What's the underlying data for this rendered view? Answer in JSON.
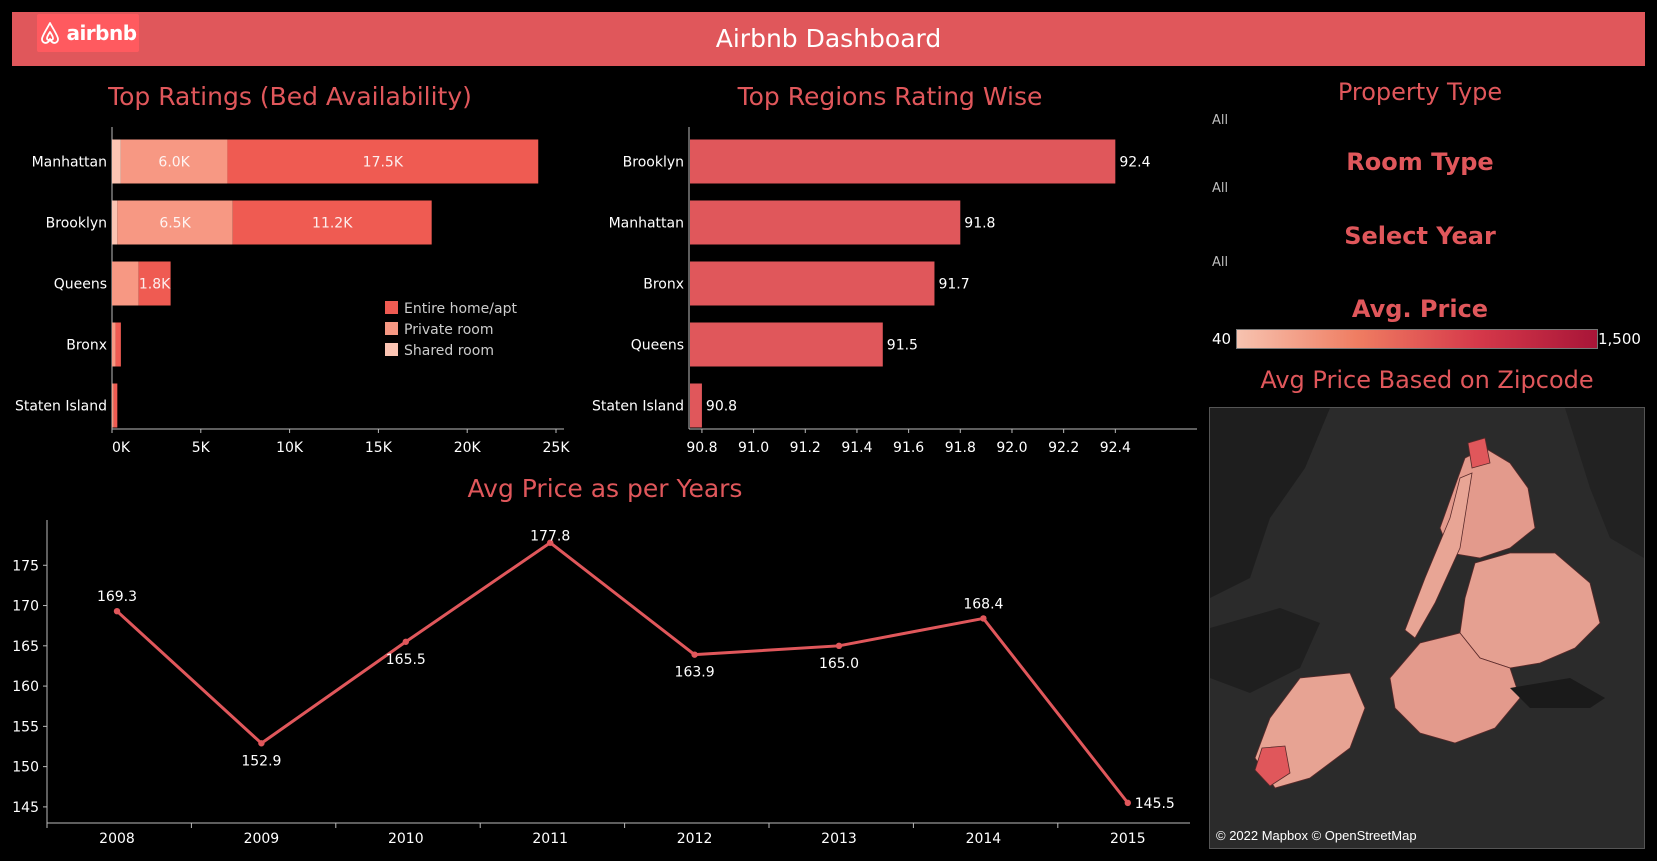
{
  "header": {
    "logo_text": "airbnb",
    "title": "Airbnb Dashboard"
  },
  "colors": {
    "accent": "#e0575b",
    "entire": "#ef5b52",
    "private": "#f79883",
    "shared": "#fbc4b3",
    "region_bar": "#e0575b",
    "line": "#e0575b"
  },
  "filters": {
    "property_type": {
      "title": "Property Type",
      "value": "All"
    },
    "room_type": {
      "title": "Room Type",
      "value": "All"
    },
    "select_year": {
      "title": "Select Year",
      "value": "All"
    },
    "avg_price": {
      "title": "Avg. Price",
      "min_label": "40",
      "max_label": "1,500"
    }
  },
  "map": {
    "title": "Avg Price Based on Zipcode",
    "credit": "© 2022 Mapbox © OpenStreetMap"
  },
  "chart_data": [
    {
      "id": "bed-availability",
      "type": "bar",
      "orientation": "horizontal",
      "stacked": true,
      "title": "Top Ratings (Bed Availability)",
      "categories": [
        "Manhattan",
        "Brooklyn",
        "Queens",
        "Bronx",
        "Staten Island"
      ],
      "series": [
        {
          "name": "Shared room",
          "values": [
            500,
            300,
            0,
            0,
            0
          ]
        },
        {
          "name": "Private room",
          "values": [
            6000,
            6500,
            1500,
            200,
            100
          ]
        },
        {
          "name": "Entire home/apt",
          "values": [
            17500,
            11200,
            1800,
            300,
            200
          ]
        }
      ],
      "data_labels": [
        {
          "category": "Manhattan",
          "series": "Private room",
          "text": "6.0K"
        },
        {
          "category": "Manhattan",
          "series": "Entire home/apt",
          "text": "17.5K"
        },
        {
          "category": "Brooklyn",
          "series": "Private room",
          "text": "6.5K"
        },
        {
          "category": "Brooklyn",
          "series": "Entire home/apt",
          "text": "11.2K"
        },
        {
          "category": "Queens",
          "series": "Entire home/apt",
          "text": "1.8K"
        }
      ],
      "xlim": [
        0,
        25000
      ],
      "xticks": [
        0,
        5000,
        10000,
        15000,
        20000,
        25000
      ],
      "xtick_labels": [
        "0K",
        "5K",
        "10K",
        "15K",
        "20K",
        "25K"
      ],
      "legend": {
        "position": "bottom-right",
        "entries": [
          "Entire home/apt",
          "Private room",
          "Shared room"
        ]
      },
      "grid": false
    },
    {
      "id": "regions-rating",
      "type": "bar",
      "orientation": "horizontal",
      "title": "Top Regions Rating Wise",
      "categories": [
        "Brooklyn",
        "Manhattan",
        "Bronx",
        "Queens",
        "Staten Island"
      ],
      "values": [
        92.4,
        91.8,
        91.7,
        91.5,
        90.8
      ],
      "xlim": [
        90.75,
        92.6
      ],
      "xticks": [
        90.8,
        91.0,
        91.2,
        91.4,
        91.6,
        91.8,
        92.0,
        92.2,
        92.4
      ],
      "xtick_labels": [
        "90.8",
        "91.0",
        "91.2",
        "91.4",
        "91.6",
        "91.8",
        "92.0",
        "92.2",
        "92.4"
      ],
      "grid": false
    },
    {
      "id": "price-years",
      "type": "line",
      "title": "Avg Price as per Years",
      "x": [
        "2008",
        "2009",
        "2010",
        "2011",
        "2012",
        "2013",
        "2014",
        "2015"
      ],
      "series": [
        {
          "values": [
            169.3,
            152.9,
            165.5,
            177.8,
            163.9,
            165.0,
            168.4,
            145.5
          ]
        }
      ],
      "data_labels": [
        "169.3",
        "152.9",
        "165.5",
        "177.8",
        "163.9",
        "165.0",
        "168.4",
        "145.5"
      ],
      "ylim": [
        143,
        180
      ],
      "yticks": [
        145,
        150,
        155,
        160,
        165,
        170,
        175
      ],
      "grid": false
    }
  ]
}
